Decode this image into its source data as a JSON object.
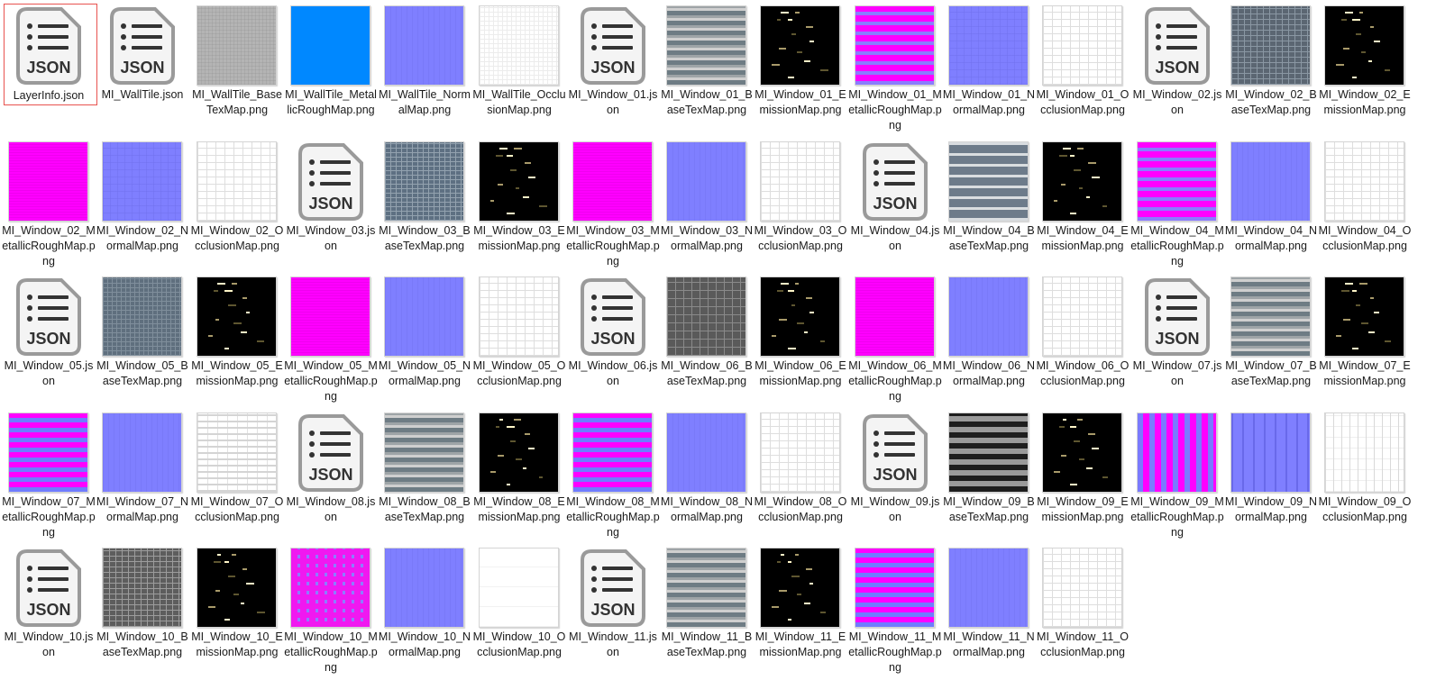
{
  "window_title": "",
  "selected_index": 0,
  "colors": {
    "selection_border": "#e8534f",
    "normal_map": "#7f7fff",
    "metallic_rough": "#ff00ff",
    "blue_metallic": "#0088ff",
    "emission_bg": "#000000"
  },
  "files": [
    {
      "label": "LayerInfo.json",
      "type": "json"
    },
    {
      "label": "MI_WallTile.json",
      "type": "json"
    },
    {
      "label": "MI_WallTile_BaseTexMap.png",
      "type": "wall_base"
    },
    {
      "label": "MI_WallTile_MetallicRoughMap.png",
      "type": "wall_metal"
    },
    {
      "label": "MI_WallTile_NormalMap.png",
      "type": "normal_plain"
    },
    {
      "label": "MI_WallTile_OcclusionMap.png",
      "type": "occlusion_fine"
    },
    {
      "label": "MI_Window_01.json",
      "type": "json"
    },
    {
      "label": "MI_Window_01_BaseTexMap.png",
      "type": "base_stripe_gray"
    },
    {
      "label": "MI_Window_01_EmissionMap.png",
      "type": "emission"
    },
    {
      "label": "MI_Window_01_MetallicRoughMap.png",
      "type": "metal_stripes"
    },
    {
      "label": "MI_Window_01_NormalMap.png",
      "type": "normal_grid"
    },
    {
      "label": "MI_Window_01_OcclusionMap.png",
      "type": "occlusion"
    },
    {
      "label": "MI_Window_02.json",
      "type": "json"
    },
    {
      "label": "MI_Window_02_BaseTexMap.png",
      "type": "base_dark_grid"
    },
    {
      "label": "MI_Window_02_EmissionMap.png",
      "type": "emission"
    },
    {
      "label": "MI_Window_02_MetallicRoughMap.png",
      "type": "metal_solid"
    },
    {
      "label": "MI_Window_02_NormalMap.png",
      "type": "normal_grid"
    },
    {
      "label": "MI_Window_02_OcclusionMap.png",
      "type": "occlusion"
    },
    {
      "label": "MI_Window_03.json",
      "type": "json"
    },
    {
      "label": "MI_Window_03_BaseTexMap.png",
      "type": "base_blue_grid"
    },
    {
      "label": "MI_Window_03_EmissionMap.png",
      "type": "emission"
    },
    {
      "label": "MI_Window_03_MetallicRoughMap.png",
      "type": "metal_solid"
    },
    {
      "label": "MI_Window_03_NormalMap.png",
      "type": "normal_plain"
    },
    {
      "label": "MI_Window_03_OcclusionMap.png",
      "type": "occlusion"
    },
    {
      "label": "MI_Window_04.json",
      "type": "json"
    },
    {
      "label": "MI_Window_04_BaseTexMap.png",
      "type": "base_slate_bands"
    },
    {
      "label": "MI_Window_04_EmissionMap.png",
      "type": "emission"
    },
    {
      "label": "MI_Window_04_MetallicRoughMap.png",
      "type": "metal_stripes"
    },
    {
      "label": "MI_Window_04_NormalMap.png",
      "type": "normal_plain"
    },
    {
      "label": "MI_Window_04_OcclusionMap.png",
      "type": "occlusion"
    },
    {
      "label": "MI_Window_05.json",
      "type": "json"
    },
    {
      "label": "MI_Window_05_BaseTexMap.png",
      "type": "base_slate_grid"
    },
    {
      "label": "MI_Window_05_EmissionMap.png",
      "type": "emission"
    },
    {
      "label": "MI_Window_05_MetallicRoughMap.png",
      "type": "metal_solid"
    },
    {
      "label": "MI_Window_05_NormalMap.png",
      "type": "normal_plain"
    },
    {
      "label": "MI_Window_05_OcclusionMap.png",
      "type": "occlusion"
    },
    {
      "label": "MI_Window_06.json",
      "type": "json"
    },
    {
      "label": "MI_Window_06_BaseTexMap.png",
      "type": "base_charcoal_grid"
    },
    {
      "label": "MI_Window_06_EmissionMap.png",
      "type": "emission"
    },
    {
      "label": "MI_Window_06_MetallicRoughMap.png",
      "type": "metal_solid"
    },
    {
      "label": "MI_Window_06_NormalMap.png",
      "type": "normal_plain"
    },
    {
      "label": "MI_Window_06_OcclusionMap.png",
      "type": "occlusion"
    },
    {
      "label": "MI_Window_07.json",
      "type": "json"
    },
    {
      "label": "MI_Window_07_BaseTexMap.png",
      "type": "base_stripe_gray"
    },
    {
      "label": "MI_Window_07_EmissionMap.png",
      "type": "emission"
    },
    {
      "label": "MI_Window_07_MetallicRoughMap.png",
      "type": "metal_stripes_blue"
    },
    {
      "label": "MI_Window_07_NormalMap.png",
      "type": "normal_plain"
    },
    {
      "label": "MI_Window_07_OcclusionMap.png",
      "type": "occlusion_rows"
    },
    {
      "label": "MI_Window_08.json",
      "type": "json"
    },
    {
      "label": "MI_Window_08_BaseTexMap.png",
      "type": "base_stripe_gray"
    },
    {
      "label": "MI_Window_08_EmissionMap.png",
      "type": "emission"
    },
    {
      "label": "MI_Window_08_MetallicRoughMap.png",
      "type": "metal_stripes_blue"
    },
    {
      "label": "MI_Window_08_NormalMap.png",
      "type": "normal_plain"
    },
    {
      "label": "MI_Window_08_OcclusionMap.png",
      "type": "occlusion"
    },
    {
      "label": "MI_Window_09.json",
      "type": "json"
    },
    {
      "label": "MI_Window_09_BaseTexMap.png",
      "type": "base_checker"
    },
    {
      "label": "MI_Window_09_EmissionMap.png",
      "type": "emission"
    },
    {
      "label": "MI_Window_09_MetallicRoughMap.png",
      "type": "metal_vstripes"
    },
    {
      "label": "MI_Window_09_NormalMap.png",
      "type": "normal_vstripes"
    },
    {
      "label": "MI_Window_09_OcclusionMap.png",
      "type": "occlusion_cols"
    },
    {
      "label": "MI_Window_10.json",
      "type": "json"
    },
    {
      "label": "MI_Window_10_BaseTexMap.png",
      "type": "base_brick"
    },
    {
      "label": "MI_Window_10_EmissionMap.png",
      "type": "emission"
    },
    {
      "label": "MI_Window_10_MetallicRoughMap.png",
      "type": "metal_grid"
    },
    {
      "label": "MI_Window_10_NormalMap.png",
      "type": "normal_plain"
    },
    {
      "label": "MI_Window_10_OcclusionMap.png",
      "type": "occlusion_blank"
    },
    {
      "label": "MI_Window_11.json",
      "type": "json"
    },
    {
      "label": "MI_Window_11_BaseTexMap.png",
      "type": "base_stripe_gray"
    },
    {
      "label": "MI_Window_11_EmissionMap.png",
      "type": "emission"
    },
    {
      "label": "MI_Window_11_MetallicRoughMap.png",
      "type": "metal_stripes_blue"
    },
    {
      "label": "MI_Window_11_NormalMap.png",
      "type": "normal_plain"
    },
    {
      "label": "MI_Window_11_OcclusionMap.png",
      "type": "occlusion"
    }
  ]
}
